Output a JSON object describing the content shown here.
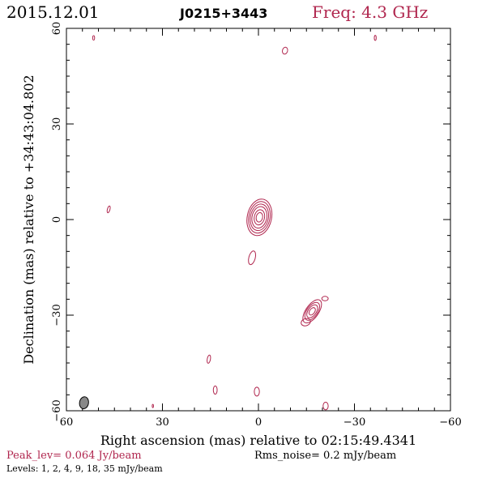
{
  "header": {
    "date": "2015.12.01",
    "source": "J0215+3443",
    "freq": "Freq: 4.3 GHz"
  },
  "footer": {
    "peak": "Peak_lev=  0.064 Jy/beam",
    "rms": "Rms_noise=  0.2 mJy/beam",
    "levels": "Levels:  1,  2,  4,  9,  18,  35 mJy/beam"
  },
  "colors": {
    "contour": "#b0264e",
    "axis": "#000000",
    "beam": "#888888"
  },
  "chart_data": {
    "type": "contour",
    "xlabel": "Right ascension (mas) relative to 02:15:49.4341",
    "ylabel": "Declination (mas) relative to +34:43:04.802",
    "xlim": [
      60,
      -60
    ],
    "ylim": [
      -60,
      60
    ],
    "xticks": [
      {
        "value": 60,
        "label": "60"
      },
      {
        "value": 30,
        "label": "30"
      },
      {
        "value": 0,
        "label": "0"
      },
      {
        "value": -30,
        "label": "−30"
      },
      {
        "value": -60,
        "label": "−60"
      }
    ],
    "yticks": [
      {
        "value": -60,
        "label": "−60"
      },
      {
        "value": -30,
        "label": "−30"
      },
      {
        "value": 0,
        "label": "0"
      },
      {
        "value": 30,
        "label": "30"
      },
      {
        "value": 60,
        "label": "60"
      }
    ],
    "minor_step": 5,
    "contour_levels_mJy": [
      1,
      2,
      4,
      9,
      18,
      35
    ],
    "peak_Jy_per_beam": 0.064,
    "rms_mJy_per_beam": 0.2,
    "beam": {
      "x": 54.5,
      "y": -57.5,
      "major": 3.8,
      "minor": 2.8,
      "pa": 10
    },
    "components": [
      {
        "name": "core",
        "x": -0.3,
        "y": 0.7,
        "rings": [
          {
            "rx": 3.8,
            "ry": 5.8,
            "rot": 12
          },
          {
            "rx": 3.3,
            "ry": 5.0,
            "rot": 12
          },
          {
            "rx": 2.8,
            "ry": 4.2,
            "rot": 12
          },
          {
            "rx": 2.3,
            "ry": 3.4,
            "rot": 12
          },
          {
            "rx": 1.6,
            "ry": 2.4,
            "rot": 12
          },
          {
            "rx": 1.0,
            "ry": 1.5,
            "rot": 12
          }
        ]
      },
      {
        "name": "jet",
        "x": -16.8,
        "y": -28.8,
        "rings": [
          {
            "rx": 4.2,
            "ry": 2.0,
            "rot": -55
          },
          {
            "rx": 3.2,
            "ry": 1.7,
            "rot": -55
          },
          {
            "rx": 2.3,
            "ry": 1.3,
            "rot": -55
          },
          {
            "rx": 1.3,
            "ry": 0.8,
            "rot": -55
          }
        ]
      },
      {
        "name": "jet-base",
        "x": -14.8,
        "y": -32.2,
        "rings": [
          {
            "rx": 1.5,
            "ry": 1.1,
            "rot": -20
          }
        ]
      },
      {
        "name": "jet-tail",
        "x": -20.8,
        "y": -24.8,
        "rings": [
          {
            "rx": 1.0,
            "ry": 0.7,
            "rot": 0
          }
        ]
      },
      {
        "name": "blob-south",
        "x": 2.0,
        "y": -12.0,
        "rings": [
          {
            "rx": 1.0,
            "ry": 2.2,
            "rot": 15
          }
        ]
      },
      {
        "name": "blob-tr",
        "x": -8.3,
        "y": 53.0,
        "rings": [
          {
            "rx": 0.8,
            "ry": 1.1,
            "rot": 15
          }
        ]
      },
      {
        "name": "blob-tl",
        "x": 51.5,
        "y": 57.0,
        "rings": [
          {
            "rx": 0.3,
            "ry": 0.7,
            "rot": 0
          }
        ]
      },
      {
        "name": "blob-tr2",
        "x": -36.5,
        "y": 57.0,
        "rings": [
          {
            "rx": 0.3,
            "ry": 0.8,
            "rot": 0
          }
        ]
      },
      {
        "name": "blob-left",
        "x": 46.8,
        "y": 3.2,
        "rings": [
          {
            "rx": 0.4,
            "ry": 1.1,
            "rot": 15
          }
        ]
      },
      {
        "name": "blob-lower1",
        "x": 15.5,
        "y": -43.8,
        "rings": [
          {
            "rx": 0.5,
            "ry": 1.3,
            "rot": 10
          }
        ]
      },
      {
        "name": "blob-lower2",
        "x": 13.5,
        "y": -53.5,
        "rings": [
          {
            "rx": 0.6,
            "ry": 1.3,
            "rot": 0
          }
        ]
      },
      {
        "name": "blob-lower3",
        "x": 0.5,
        "y": -54.0,
        "rings": [
          {
            "rx": 0.8,
            "ry": 1.4,
            "rot": 0
          }
        ]
      },
      {
        "name": "blob-bottom-mid",
        "x": 33.0,
        "y": -58.5,
        "rings": [
          {
            "rx": 0.2,
            "ry": 0.5,
            "rot": 0
          }
        ]
      },
      {
        "name": "blob-bottom-right",
        "x": -21.0,
        "y": -58.5,
        "rings": [
          {
            "rx": 0.8,
            "ry": 1.2,
            "rot": 0
          }
        ]
      }
    ]
  }
}
